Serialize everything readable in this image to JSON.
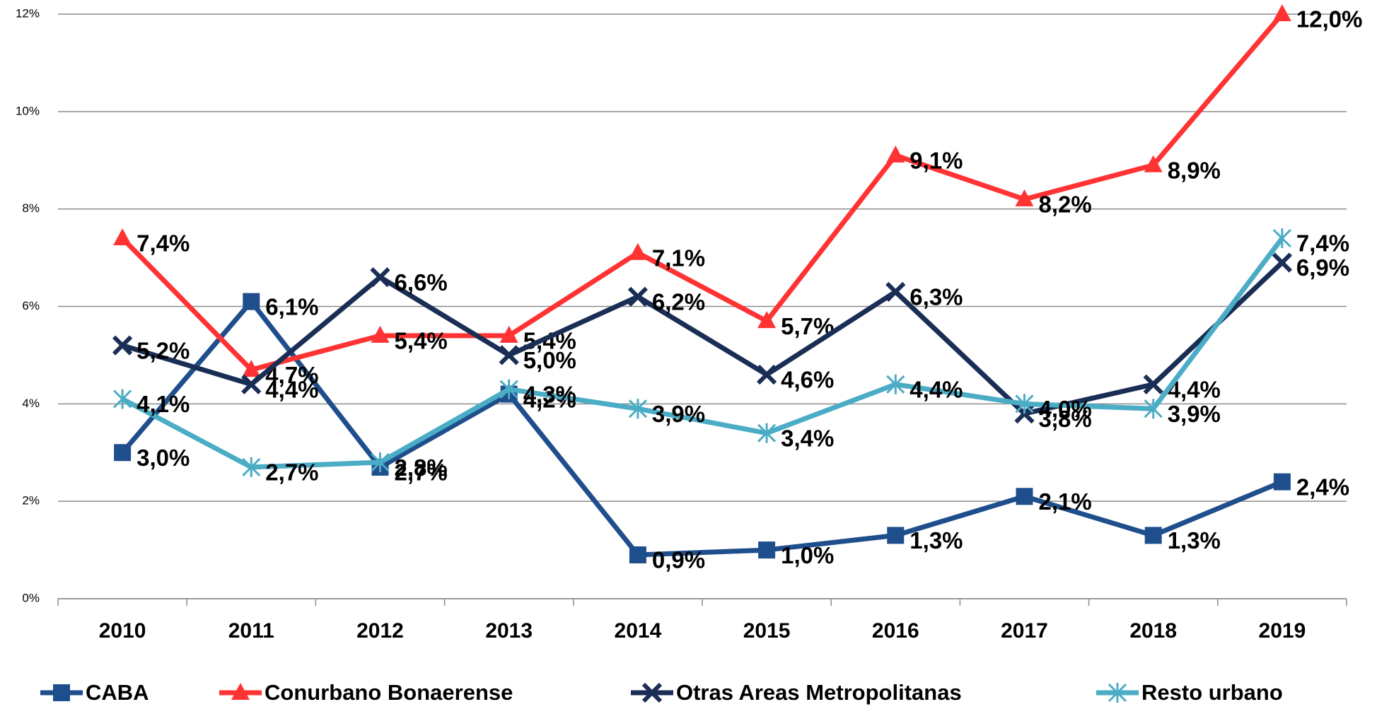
{
  "chart_data": {
    "type": "line",
    "categories": [
      "2010",
      "2011",
      "2012",
      "2013",
      "2014",
      "2015",
      "2016",
      "2017",
      "2018",
      "2019"
    ],
    "ylim": [
      0,
      12
    ],
    "yticks": [
      {
        "value": 0,
        "label": "0%"
      },
      {
        "value": 2,
        "label": "2%"
      },
      {
        "value": 4,
        "label": "4%"
      },
      {
        "value": 6,
        "label": "6%"
      },
      {
        "value": 8,
        "label": "8%"
      },
      {
        "value": 10,
        "label": "10%"
      },
      {
        "value": 12,
        "label": "12%"
      }
    ],
    "grid": true,
    "legend": "bottom",
    "series": [
      {
        "name": "CABA",
        "color": "#1f4e8c",
        "marker": "square",
        "values": [
          3.0,
          6.1,
          2.7,
          4.2,
          0.9,
          1.0,
          1.3,
          2.1,
          1.3,
          2.4
        ],
        "value_labels": [
          "3,0%",
          "6,1%",
          "2,7%",
          "4,2%",
          "0,9%",
          "1,0%",
          "1,3%",
          "2,1%",
          "1,3%",
          "2,4%"
        ]
      },
      {
        "name": "Conurbano Bonaerense",
        "color": "#ff3333",
        "marker": "triangle",
        "values": [
          7.4,
          4.7,
          5.4,
          5.4,
          7.1,
          5.7,
          9.1,
          8.2,
          8.9,
          12.0
        ],
        "value_labels": [
          "7,4%",
          "4,7%",
          "5,4%",
          "5,4%",
          "7,1%",
          "5,7%",
          "9,1%",
          "8,2%",
          "8,9%",
          "12,0%"
        ]
      },
      {
        "name": "Otras Areas Metropolitanas",
        "color": "#1a2e55",
        "marker": "x",
        "values": [
          5.2,
          4.4,
          6.6,
          5.0,
          6.2,
          4.6,
          6.3,
          3.8,
          4.4,
          6.9
        ],
        "value_labels": [
          "5,2%",
          "4,4%",
          "6,6%",
          "5,0%",
          "6,2%",
          "4,6%",
          "6,3%",
          "3,8%",
          "4,4%",
          "6,9%"
        ]
      },
      {
        "name": "Resto urbano",
        "color": "#4bacc6",
        "marker": "star",
        "values": [
          4.1,
          2.7,
          2.8,
          4.3,
          3.9,
          3.4,
          4.4,
          4.0,
          3.9,
          7.4
        ],
        "value_labels": [
          "4,1%",
          "2,7%",
          "2,8%",
          "4,3%",
          "3,9%",
          "3,4%",
          "4,4%",
          "4,0%",
          "3,9%",
          "7,4%"
        ]
      }
    ]
  }
}
